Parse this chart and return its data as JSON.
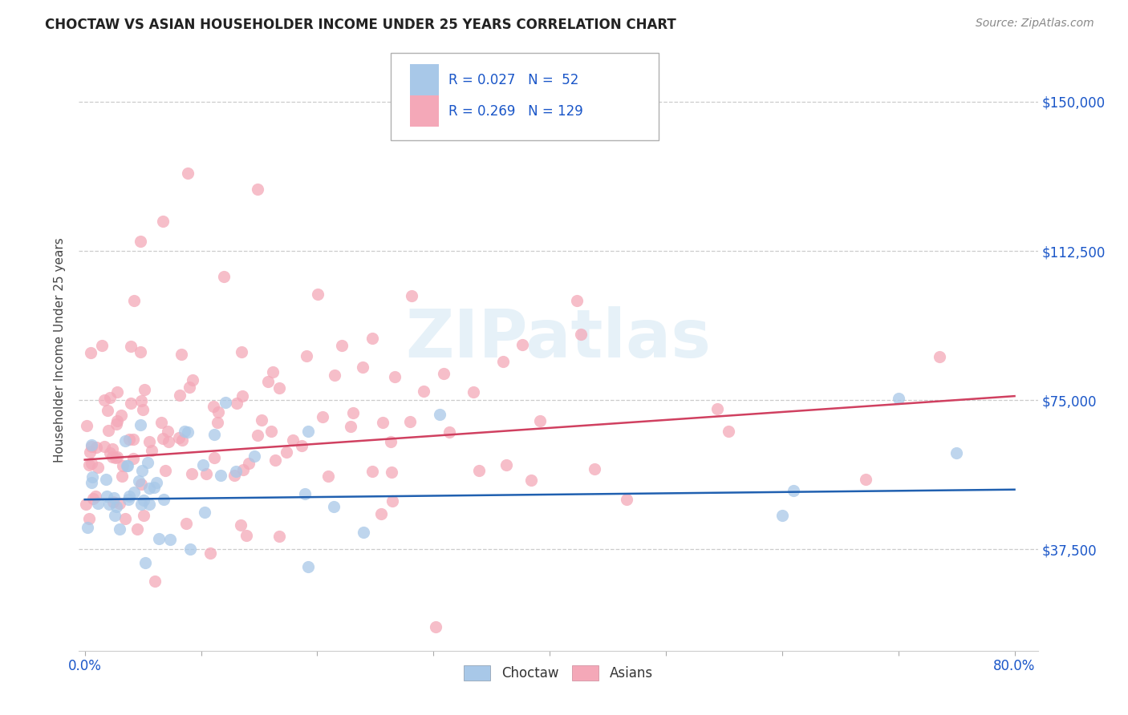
{
  "title": "CHOCTAW VS ASIAN HOUSEHOLDER INCOME UNDER 25 YEARS CORRELATION CHART",
  "source": "Source: ZipAtlas.com",
  "ylabel": "Householder Income Under 25 years",
  "ytick_labels": [
    "$37,500",
    "$75,000",
    "$112,500",
    "$150,000"
  ],
  "ytick_values": [
    37500,
    75000,
    112500,
    150000
  ],
  "ymin": 12000,
  "ymax": 163000,
  "xmin": -0.005,
  "xmax": 0.82,
  "choctaw_R": 0.027,
  "choctaw_N": 52,
  "asian_R": 0.269,
  "asian_N": 129,
  "choctaw_color": "#a8c8e8",
  "asian_color": "#f4a8b8",
  "choctaw_line_color": "#2060b0",
  "asian_line_color": "#d04060",
  "background_color": "#ffffff",
  "grid_color": "#cccccc",
  "watermark": "ZIPatlas",
  "legend_text_color": "#1a56c8",
  "title_color": "#222222",
  "source_color": "#888888",
  "ylabel_color": "#444444"
}
